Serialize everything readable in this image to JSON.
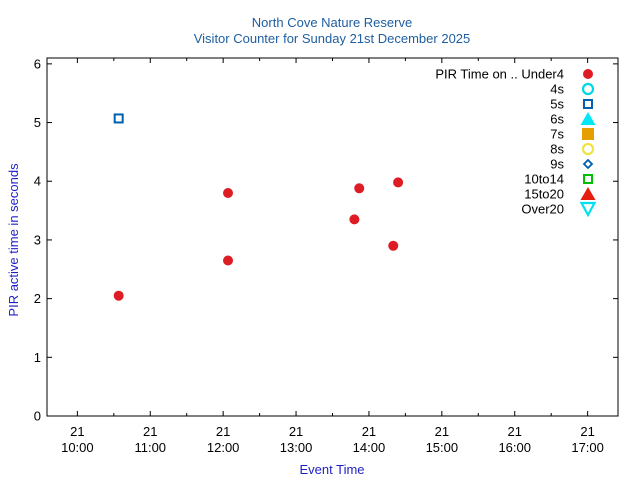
{
  "chart_data": {
    "type": "scatter",
    "title_line1": "North Cove Nature Reserve",
    "title_line2": "Visitor Counter for Sunday 21st December 2025",
    "xlabel": "Event Time",
    "ylabel": "PIR active time in seconds",
    "xlim": [
      "2025-12-21 09:35",
      "2025-12-21 17:25"
    ],
    "ylim": [
      0,
      6.1
    ],
    "yticks": [
      0,
      1,
      2,
      3,
      4,
      5,
      6
    ],
    "xticks": [
      {
        "time": "2025-12-21 10:00",
        "day": "21",
        "hour": "10:00"
      },
      {
        "time": "2025-12-21 11:00",
        "day": "21",
        "hour": "11:00"
      },
      {
        "time": "2025-12-21 12:00",
        "day": "21",
        "hour": "12:00"
      },
      {
        "time": "2025-12-21 13:00",
        "day": "21",
        "hour": "13:00"
      },
      {
        "time": "2025-12-21 14:00",
        "day": "21",
        "hour": "14:00"
      },
      {
        "time": "2025-12-21 15:00",
        "day": "21",
        "hour": "15:00"
      },
      {
        "time": "2025-12-21 16:00",
        "day": "21",
        "hour": "16:00"
      },
      {
        "time": "2025-12-21 17:00",
        "day": "21",
        "hour": "17:00"
      }
    ],
    "minor_xticks": [
      "2025-12-21 10:30",
      "2025-12-21 11:30",
      "2025-12-21 12:30",
      "2025-12-21 13:30",
      "2025-12-21 14:30",
      "2025-12-21 15:30",
      "2025-12-21 16:30"
    ],
    "legend_title": "PIR Time on ..",
    "legend_position": "top-right",
    "grid": false,
    "series": [
      {
        "name": "Under4",
        "marker": "filled-circle",
        "color": "#dd1c24",
        "points": [
          {
            "x": "2025-12-21 10:34",
            "y": 2.05
          },
          {
            "x": "2025-12-21 12:04",
            "y": 3.8
          },
          {
            "x": "2025-12-21 12:04",
            "y": 2.65
          },
          {
            "x": "2025-12-21 13:48",
            "y": 3.35
          },
          {
            "x": "2025-12-21 13:52",
            "y": 3.88
          },
          {
            "x": "2025-12-21 14:20",
            "y": 2.9
          },
          {
            "x": "2025-12-21 14:24",
            "y": 3.98
          }
        ]
      },
      {
        "name": "4s",
        "marker": "open-circle",
        "color": "#00d8e8",
        "points": []
      },
      {
        "name": "5s",
        "marker": "open-square",
        "color": "#0060ad",
        "points": [
          {
            "x": "2025-12-21 10:34",
            "y": 5.07
          }
        ]
      },
      {
        "name": "6s",
        "marker": "filled-triangle",
        "color": "#00e8f8",
        "points": []
      },
      {
        "name": "7s",
        "marker": "filled-square",
        "color": "#e69f00",
        "points": []
      },
      {
        "name": "8s",
        "marker": "open-circle",
        "color": "#f0e442",
        "points": []
      },
      {
        "name": "9s",
        "marker": "open-diamond",
        "color": "#0060ad",
        "points": []
      },
      {
        "name": "10to14",
        "marker": "open-square",
        "color": "#00c000",
        "points": []
      },
      {
        "name": "15to20",
        "marker": "filled-triangle",
        "color": "#e51e10",
        "points": []
      },
      {
        "name": "Over20",
        "marker": "open-down-triangle",
        "color": "#00e0f0",
        "points": []
      }
    ]
  }
}
